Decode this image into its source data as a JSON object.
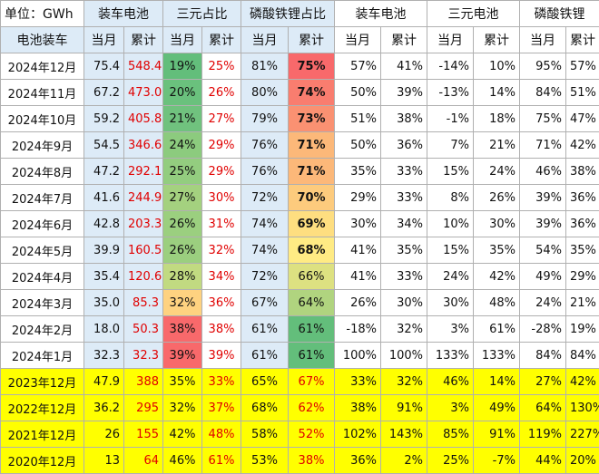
{
  "header": {
    "unit": "单位：GWh",
    "groups": [
      "装车电池",
      "三元占比",
      "磷酸铁锂占比",
      "装车电池",
      "三元电池",
      "磷酸铁锂"
    ],
    "row_label": "电池装车",
    "sub": [
      "当月",
      "累计",
      "当月",
      "累计",
      "当月",
      "累计",
      "当月",
      "累计",
      "当月",
      "累计",
      "当月",
      "累计"
    ]
  },
  "rows": [
    {
      "label": "2024年12月",
      "v": [
        "75.4",
        "548.4",
        "19%",
        "25%",
        "81%",
        "75%",
        "57%",
        "41%",
        "-14%",
        "10%",
        "95%",
        "57%"
      ],
      "ternary_bg": "#63be7b",
      "lfp_bg": "#f8696b",
      "lfp_bold": true
    },
    {
      "label": "2024年11月",
      "v": [
        "67.2",
        "473.0",
        "20%",
        "26%",
        "80%",
        "74%",
        "50%",
        "39%",
        "-13%",
        "14%",
        "84%",
        "51%"
      ],
      "ternary_bg": "#6ac17d",
      "lfp_bg": "#f97d6f",
      "lfp_bold": true
    },
    {
      "label": "2024年10月",
      "v": [
        "59.2",
        "405.8",
        "21%",
        "27%",
        "79%",
        "73%",
        "51%",
        "38%",
        "-1%",
        "18%",
        "75%",
        "47%"
      ],
      "ternary_bg": "#70c27e",
      "lfp_bg": "#fa9172",
      "lfp_bold": true
    },
    {
      "label": "2024年9月",
      "v": [
        "54.5",
        "346.6",
        "24%",
        "29%",
        "76%",
        "71%",
        "50%",
        "36%",
        "7%",
        "21%",
        "71%",
        "42%"
      ],
      "ternary_bg": "#8ccb7e",
      "lfp_bg": "#fcb879",
      "lfp_bold": true
    },
    {
      "label": "2024年8月",
      "v": [
        "47.2",
        "292.1",
        "25%",
        "29%",
        "76%",
        "71%",
        "35%",
        "33%",
        "15%",
        "24%",
        "46%",
        "38%"
      ],
      "ternary_bg": "#93cd7f",
      "lfp_bg": "#fcb879",
      "lfp_bold": true
    },
    {
      "label": "2024年7月",
      "v": [
        "41.6",
        "244.9",
        "27%",
        "30%",
        "72%",
        "70%",
        "29%",
        "33%",
        "8%",
        "26%",
        "39%",
        "36%"
      ],
      "ternary_bg": "#a4d17f",
      "lfp_bg": "#fdcb7d",
      "lfp_bold": true
    },
    {
      "label": "2024年6月",
      "v": [
        "42.8",
        "203.3",
        "26%",
        "31%",
        "74%",
        "69%",
        "30%",
        "34%",
        "10%",
        "30%",
        "39%",
        "36%"
      ],
      "ternary_bg": "#9bcf7f",
      "lfp_bg": "#fede80",
      "lfp_bold": true
    },
    {
      "label": "2024年5月",
      "v": [
        "39.9",
        "160.5",
        "26%",
        "32%",
        "74%",
        "68%",
        "41%",
        "35%",
        "15%",
        "35%",
        "54%",
        "35%"
      ],
      "ternary_bg": "#9bcf7f",
      "lfp_bg": "#ffeb84",
      "lfp_bold": true
    },
    {
      "label": "2024年4月",
      "v": [
        "35.4",
        "120.6",
        "28%",
        "34%",
        "72%",
        "66%",
        "41%",
        "33%",
        "24%",
        "42%",
        "49%",
        "29%"
      ],
      "ternary_bg": "#c1da81",
      "lfp_bg": "#dde181",
      "lfp_bold": false
    },
    {
      "label": "2024年3月",
      "v": [
        "35.0",
        "85.3",
        "32%",
        "36%",
        "67%",
        "64%",
        "26%",
        "30%",
        "30%",
        "48%",
        "24%",
        "21%"
      ],
      "ternary_bg": "#fed280",
      "lfp_bg": "#b0d47f",
      "lfp_bold": false
    },
    {
      "label": "2024年2月",
      "v": [
        "18.0",
        "50.3",
        "38%",
        "38%",
        "61%",
        "61%",
        "-18%",
        "32%",
        "3%",
        "61%",
        "-28%",
        "19%"
      ],
      "ternary_bg": "#f8696b",
      "lfp_bg": "#63be7b",
      "lfp_bold": false
    },
    {
      "label": "2024年1月",
      "v": [
        "32.3",
        "32.3",
        "39%",
        "39%",
        "61%",
        "61%",
        "100%",
        "100%",
        "133%",
        "133%",
        "84%",
        "84%"
      ],
      "ternary_bg": "#f8696b",
      "lfp_bg": "#63be7b",
      "lfp_bold": false
    }
  ],
  "annual": [
    {
      "label": "2023年12月",
      "v": [
        "47.9",
        "388",
        "35%",
        "33%",
        "65%",
        "67%",
        "33%",
        "32%",
        "46%",
        "14%",
        "27%",
        "42%"
      ]
    },
    {
      "label": "2022年12月",
      "v": [
        "36.2",
        "295",
        "32%",
        "37%",
        "68%",
        "62%",
        "38%",
        "91%",
        "3%",
        "49%",
        "64%",
        "130%"
      ]
    },
    {
      "label": "2021年12月",
      "v": [
        "26",
        "155",
        "42%",
        "48%",
        "58%",
        "52%",
        "102%",
        "143%",
        "85%",
        "91%",
        "119%",
        "227%"
      ]
    },
    {
      "label": "2020年12月",
      "v": [
        "13",
        "64",
        "46%",
        "61%",
        "53%",
        "38%",
        "36%",
        "2%",
        "25%",
        "-7%",
        "44%",
        "20%"
      ]
    }
  ],
  "colors": {
    "header_blue": "#ddebf7",
    "red_text": "#e00000",
    "annual_yellow": "#ffff00"
  }
}
